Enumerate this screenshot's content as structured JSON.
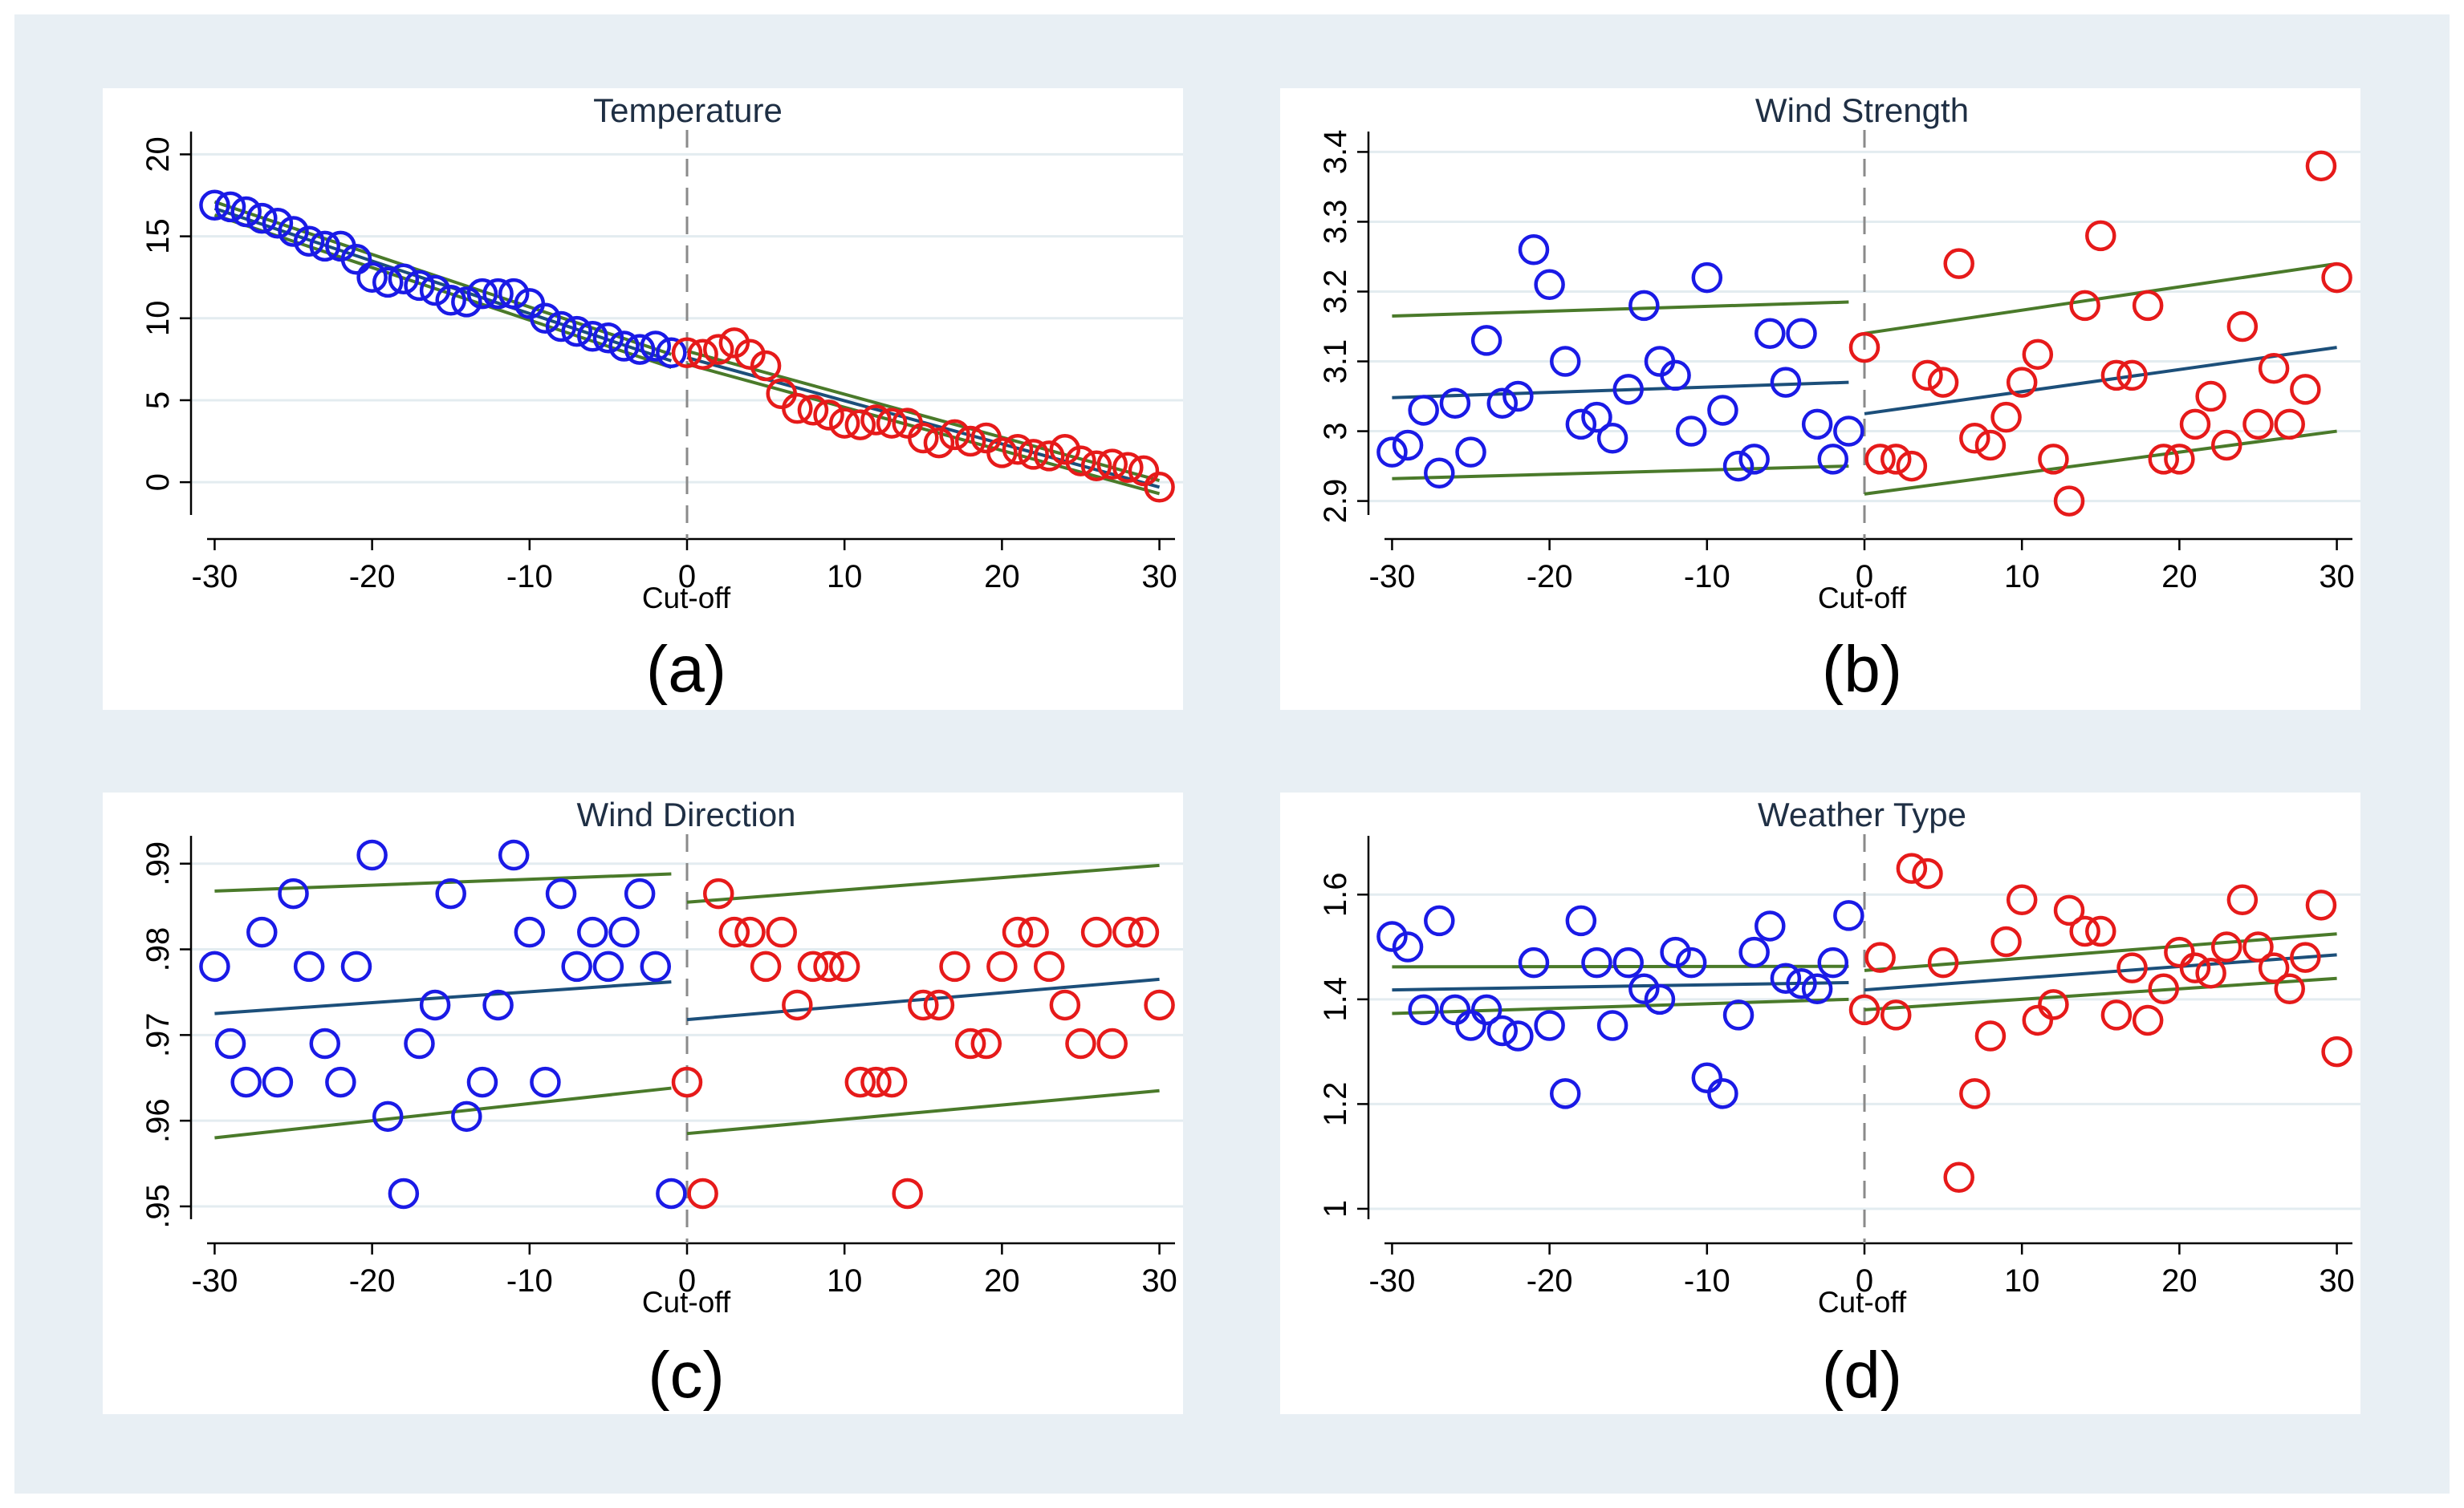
{
  "figure": {
    "background_color": "#e8eff4",
    "plot_background_color": "#ffffff",
    "gridline_color": "#e3ecf0"
  },
  "colors": {
    "left_markers": "#1a1ae6",
    "right_markers": "#e61a1a",
    "fit_line": "#1c4f7a",
    "ci_line": "#4a7a2a",
    "cutoff_line": "#8a8a8a"
  },
  "chart_data": [
    {
      "type": "scatter",
      "title": "Temperature",
      "xlabel": "Cut-off",
      "ylabel": "",
      "panel_label": "(a)",
      "xlim": [
        -31.5,
        31.5
      ],
      "ylim": [
        -2,
        21
      ],
      "xticks": [
        -30,
        -20,
        -10,
        0,
        10,
        20,
        30
      ],
      "yticks": [
        0,
        5,
        10,
        15,
        20
      ],
      "cutoff": 0,
      "grid": true,
      "legend": "none",
      "series": [
        {
          "name": "left",
          "color": "blue",
          "x": [
            -30,
            -29,
            -28,
            -27,
            -26,
            -25,
            -24,
            -23,
            -22,
            -21,
            -20,
            -19,
            -18,
            -17,
            -16,
            -15,
            -14,
            -13,
            -12,
            -11,
            -10,
            -9,
            -8,
            -7,
            -6,
            -5,
            -4,
            -3,
            -2,
            -1
          ],
          "y": [
            16.9,
            16.8,
            16.5,
            16.1,
            15.8,
            15.3,
            14.7,
            14.4,
            14.4,
            13.6,
            12.5,
            12.2,
            12.4,
            12.0,
            11.7,
            11.1,
            11.0,
            11.5,
            11.5,
            11.5,
            10.9,
            10.0,
            9.5,
            9.2,
            8.9,
            8.8,
            8.3,
            8.1,
            8.3,
            7.9
          ]
        },
        {
          "name": "right",
          "color": "red",
          "x": [
            0,
            1,
            2,
            3,
            4,
            5,
            6,
            7,
            8,
            9,
            10,
            11,
            12,
            13,
            14,
            15,
            16,
            17,
            18,
            19,
            20,
            21,
            22,
            23,
            24,
            25,
            26,
            27,
            28,
            29,
            30
          ],
          "y": [
            7.9,
            7.8,
            8.1,
            8.5,
            7.8,
            7.1,
            5.4,
            4.5,
            4.4,
            4.1,
            3.6,
            3.5,
            3.8,
            3.6,
            3.6,
            2.7,
            2.4,
            2.9,
            2.5,
            2.7,
            1.8,
            2.0,
            1.7,
            1.6,
            2.0,
            1.3,
            1.0,
            1.1,
            0.9,
            0.7,
            -0.3
          ]
        }
      ],
      "fit_left": {
        "x": [
          -30,
          -1
        ],
        "y": [
          16.7,
          7.4
        ]
      },
      "fit_right": {
        "x": [
          0,
          30
        ],
        "y": [
          7.6,
          -0.3
        ]
      },
      "ci_left_upper": {
        "x": [
          -30,
          -1
        ],
        "y": [
          17.1,
          7.8
        ]
      },
      "ci_left_lower": {
        "x": [
          -30,
          -1
        ],
        "y": [
          16.3,
          7.0
        ]
      },
      "ci_right_upper": {
        "x": [
          0,
          30
        ],
        "y": [
          8.0,
          0.1
        ]
      },
      "ci_right_lower": {
        "x": [
          0,
          30
        ],
        "y": [
          7.2,
          -0.7
        ]
      }
    },
    {
      "type": "scatter",
      "title": "Wind Strength",
      "xlabel": "Cut-off",
      "ylabel": "",
      "panel_label": "(b)",
      "xlim": [
        -31.5,
        31.5
      ],
      "ylim": [
        2.88,
        3.42
      ],
      "xticks": [
        -30,
        -20,
        -10,
        0,
        10,
        20,
        30
      ],
      "yticks": [
        2.9,
        3,
        3.1,
        3.2,
        3.3,
        3.4
      ],
      "ytick_labels": [
        "2.9",
        "3",
        "3.1",
        "3.2",
        "3.3",
        "3.4"
      ],
      "cutoff": 0,
      "grid": true,
      "legend": "none",
      "series": [
        {
          "name": "left",
          "color": "blue",
          "x": [
            -30,
            -29,
            -28,
            -27,
            -26,
            -25,
            -24,
            -23,
            -22,
            -21,
            -20,
            -19,
            -18,
            -17,
            -16,
            -15,
            -14,
            -13,
            -12,
            -11,
            -10,
            -9,
            -8,
            -7,
            -6,
            -5,
            -4,
            -3,
            -2,
            -1
          ],
          "y": [
            2.97,
            2.98,
            3.03,
            2.94,
            3.04,
            2.97,
            3.13,
            3.04,
            3.05,
            3.26,
            3.21,
            3.1,
            3.01,
            3.02,
            2.99,
            3.06,
            3.18,
            3.1,
            3.08,
            3.0,
            3.22,
            3.03,
            2.95,
            2.96,
            3.14,
            3.07,
            3.14,
            3.01,
            2.96,
            3.0
          ]
        },
        {
          "name": "right",
          "color": "red",
          "x": [
            0,
            1,
            2,
            3,
            4,
            5,
            6,
            7,
            8,
            9,
            10,
            11,
            12,
            13,
            14,
            15,
            16,
            17,
            18,
            19,
            20,
            21,
            22,
            23,
            24,
            25,
            26,
            27,
            28,
            29,
            30
          ],
          "y": [
            3.12,
            2.96,
            2.96,
            2.95,
            3.08,
            3.07,
            3.24,
            2.99,
            2.98,
            3.02,
            3.07,
            3.11,
            2.96,
            2.9,
            3.18,
            3.28,
            3.08,
            3.08,
            3.18,
            2.96,
            2.96,
            3.01,
            3.05,
            2.98,
            3.15,
            3.01,
            3.09,
            3.01,
            3.06,
            3.38,
            3.22
          ]
        }
      ],
      "fit_left": {
        "x": [
          -30,
          -1
        ],
        "y": [
          3.048,
          3.07
        ]
      },
      "fit_right": {
        "x": [
          0,
          30
        ],
        "y": [
          3.025,
          3.12
        ]
      },
      "ci_left_upper": {
        "x": [
          -30,
          -1
        ],
        "y": [
          3.165,
          3.185
        ]
      },
      "ci_left_lower": {
        "x": [
          -30,
          -1
        ],
        "y": [
          2.932,
          2.95
        ]
      },
      "ci_right_upper": {
        "x": [
          0,
          30
        ],
        "y": [
          3.14,
          3.24
        ]
      },
      "ci_right_lower": {
        "x": [
          0,
          30
        ],
        "y": [
          2.91,
          3.0
        ]
      }
    },
    {
      "type": "scatter",
      "title": "Wind Direction",
      "xlabel": "Cut-off",
      "ylabel": "",
      "panel_label": "(c)",
      "xlim": [
        -31.5,
        31.5
      ],
      "ylim": [
        0.9485,
        0.9925
      ],
      "xticks": [
        -30,
        -20,
        -10,
        0,
        10,
        20,
        30
      ],
      "yticks": [
        0.95,
        0.96,
        0.97,
        0.98,
        0.99
      ],
      "ytick_labels": [
        ".95",
        ".96",
        ".97",
        ".98",
        ".99"
      ],
      "cutoff": 0,
      "grid": true,
      "legend": "none",
      "series": [
        {
          "name": "left",
          "color": "blue",
          "x": [
            -30,
            -29,
            -28,
            -27,
            -26,
            -25,
            -24,
            -23,
            -22,
            -21,
            -20,
            -19,
            -18,
            -17,
            -16,
            -15,
            -14,
            -13,
            -12,
            -11,
            -10,
            -9,
            -8,
            -7,
            -6,
            -5,
            -4,
            -3,
            -2,
            -1
          ],
          "y": [
            0.978,
            0.969,
            0.9645,
            0.982,
            0.9645,
            0.9865,
            0.978,
            0.969,
            0.9645,
            0.978,
            0.991,
            0.9605,
            0.9515,
            0.969,
            0.9735,
            0.9865,
            0.9605,
            0.9645,
            0.9735,
            0.991,
            0.982,
            0.9645,
            0.9865,
            0.978,
            0.982,
            0.978,
            0.982,
            0.9865,
            0.978,
            0.9515
          ]
        },
        {
          "name": "right",
          "color": "red",
          "x": [
            0,
            1,
            2,
            3,
            4,
            5,
            6,
            7,
            8,
            9,
            10,
            11,
            12,
            13,
            14,
            15,
            16,
            17,
            18,
            19,
            20,
            21,
            22,
            23,
            24,
            25,
            26,
            27,
            28,
            29,
            30
          ],
          "y": [
            0.9645,
            0.9515,
            0.9865,
            0.982,
            0.982,
            0.978,
            0.982,
            0.9735,
            0.978,
            0.978,
            0.978,
            0.9645,
            0.9645,
            0.9645,
            0.9515,
            0.9735,
            0.9735,
            0.978,
            0.969,
            0.969,
            0.978,
            0.982,
            0.982,
            0.978,
            0.9735,
            0.969,
            0.982,
            0.969,
            0.982,
            0.982,
            0.9735
          ]
        }
      ],
      "fit_left": {
        "x": [
          -30,
          -1
        ],
        "y": [
          0.9725,
          0.9762
        ]
      },
      "fit_right": {
        "x": [
          0,
          30
        ],
        "y": [
          0.9718,
          0.9765
        ]
      },
      "ci_left_upper": {
        "x": [
          -30,
          -1
        ],
        "y": [
          0.9868,
          0.9888
        ]
      },
      "ci_left_lower": {
        "x": [
          -30,
          -1
        ],
        "y": [
          0.958,
          0.9638
        ]
      },
      "ci_right_upper": {
        "x": [
          0,
          30
        ],
        "y": [
          0.9855,
          0.9898
        ]
      },
      "ci_right_lower": {
        "x": [
          0,
          30
        ],
        "y": [
          0.9585,
          0.9635
        ]
      }
    },
    {
      "type": "scatter",
      "title": "Weather Type",
      "xlabel": "Cut-off",
      "ylabel": "",
      "panel_label": "(d)",
      "xlim": [
        -31.5,
        31.5
      ],
      "ylim": [
        0.98,
        1.7
      ],
      "xticks": [
        -30,
        -20,
        -10,
        0,
        10,
        20,
        30
      ],
      "yticks": [
        1,
        1.2,
        1.4,
        1.6
      ],
      "ytick_labels": [
        "1",
        "1.2",
        "1.4",
        "1.6"
      ],
      "cutoff": 0,
      "grid": true,
      "legend": "none",
      "series": [
        {
          "name": "left",
          "color": "blue",
          "x": [
            -30,
            -29,
            -28,
            -27,
            -26,
            -25,
            -24,
            -23,
            -22,
            -21,
            -20,
            -19,
            -18,
            -17,
            -16,
            -15,
            -14,
            -13,
            -12,
            -11,
            -10,
            -9,
            -8,
            -7,
            -6,
            -5,
            -4,
            -3,
            -2,
            -1
          ],
          "y": [
            1.52,
            1.5,
            1.38,
            1.55,
            1.38,
            1.35,
            1.38,
            1.34,
            1.33,
            1.47,
            1.35,
            1.22,
            1.55,
            1.47,
            1.35,
            1.47,
            1.42,
            1.4,
            1.49,
            1.47,
            1.25,
            1.22,
            1.37,
            1.49,
            1.54,
            1.44,
            1.43,
            1.42,
            1.47,
            1.56
          ]
        },
        {
          "name": "right",
          "color": "red",
          "x": [
            0,
            1,
            2,
            3,
            4,
            5,
            6,
            7,
            8,
            9,
            10,
            11,
            12,
            13,
            14,
            15,
            16,
            17,
            18,
            19,
            20,
            21,
            22,
            23,
            24,
            25,
            26,
            27,
            28,
            29,
            30
          ],
          "y": [
            1.38,
            1.48,
            1.37,
            1.65,
            1.64,
            1.47,
            1.06,
            1.22,
            1.33,
            1.51,
            1.59,
            1.36,
            1.39,
            1.57,
            1.53,
            1.53,
            1.37,
            1.46,
            1.36,
            1.42,
            1.49,
            1.46,
            1.45,
            1.5,
            1.59,
            1.5,
            1.46,
            1.42,
            1.48,
            1.58,
            1.3
          ]
        }
      ],
      "fit_left": {
        "x": [
          -30,
          -1
        ],
        "y": [
          1.418,
          1.432
        ]
      },
      "fit_right": {
        "x": [
          0,
          30
        ],
        "y": [
          1.418,
          1.485
        ]
      },
      "ci_left_upper": {
        "x": [
          -30,
          -1
        ],
        "y": [
          1.462,
          1.463
        ]
      },
      "ci_left_lower": {
        "x": [
          -30,
          -1
        ],
        "y": [
          1.373,
          1.4
        ]
      },
      "ci_right_upper": {
        "x": [
          0,
          30
        ],
        "y": [
          1.455,
          1.525
        ]
      },
      "ci_right_lower": {
        "x": [
          0,
          30
        ],
        "y": [
          1.38,
          1.44
        ]
      }
    }
  ]
}
